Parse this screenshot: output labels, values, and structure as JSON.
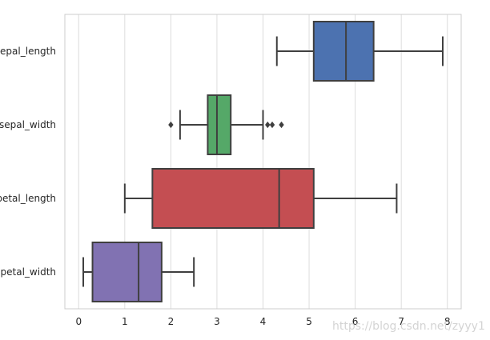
{
  "chart_data": {
    "type": "boxplot",
    "orientation": "horizontal",
    "grid": "vertical lines",
    "xlim": [
      -0.3,
      8.3
    ],
    "xticks": [
      0,
      1,
      2,
      3,
      4,
      5,
      6,
      7,
      8
    ],
    "categories": [
      "sepal_length",
      "sepal_width",
      "petal_length",
      "petal_width"
    ],
    "boxes": [
      {
        "name": "sepal_length",
        "whislo": 4.3,
        "q1": 5.1,
        "med": 5.8,
        "q3": 6.4,
        "whishi": 7.9,
        "fliers": [],
        "color": "#4c72b0"
      },
      {
        "name": "sepal_width",
        "whislo": 2.2,
        "q1": 2.8,
        "med": 3.0,
        "q3": 3.3,
        "whishi": 4.0,
        "fliers": [
          2.0,
          4.1,
          4.2,
          4.4
        ],
        "color": "#55a868"
      },
      {
        "name": "petal_length",
        "whislo": 1.0,
        "q1": 1.6,
        "med": 4.35,
        "q3": 5.1,
        "whishi": 6.9,
        "fliers": [],
        "color": "#c44e52"
      },
      {
        "name": "petal_width",
        "whislo": 0.1,
        "q1": 0.3,
        "med": 1.3,
        "q3": 1.8,
        "whishi": 2.5,
        "fliers": [],
        "color": "#8172b2"
      }
    ]
  },
  "watermark": "https://blog.csdn.net/zyyy1"
}
